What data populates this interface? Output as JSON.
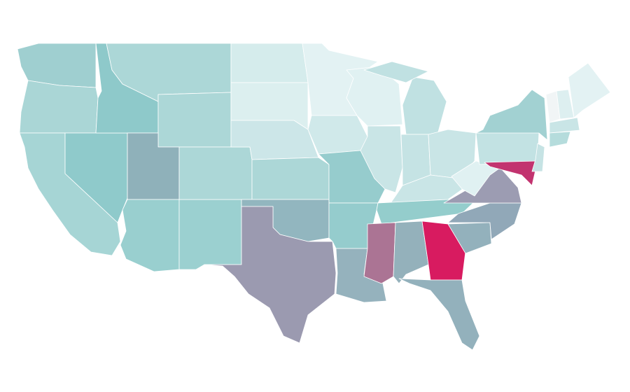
{
  "map": {
    "regions": [
      {
        "fill": "#9fcfd0"
      },
      {
        "fill": "#aad6d6"
      },
      {
        "fill": "#a6d5d5"
      },
      {
        "fill": "#8fcacb"
      },
      {
        "fill": "#8ec9ca"
      },
      {
        "fill": "#acd7d7"
      },
      {
        "fill": "#acd7d7"
      },
      {
        "fill": "#8fb1ba"
      },
      {
        "fill": "#99cfcf"
      },
      {
        "fill": "#9bd0d0"
      },
      {
        "fill": "#acd7d7"
      },
      {
        "fill": "#d5ecec"
      },
      {
        "fill": "#dcefef"
      },
      {
        "fill": "#cce6e8"
      },
      {
        "fill": "#acd7d7"
      },
      {
        "fill": "#92b6bf"
      },
      {
        "fill": "#9b9ab0"
      },
      {
        "fill": "#e3f2f3"
      },
      {
        "fill": "#d0e9ea"
      },
      {
        "fill": "#96cccd"
      },
      {
        "fill": "#95cccd"
      },
      {
        "fill": "#95b2bd"
      },
      {
        "fill": "#e0f1f2"
      },
      {
        "fill": "#c9e5e6"
      },
      {
        "fill": "#c0e1e2"
      },
      {
        "fill": "#c0e1e2"
      },
      {
        "fill": "#c5e3e4"
      },
      {
        "fill": "#c9e5e6"
      },
      {
        "fill": "#c9e5e6"
      },
      {
        "fill": "#94cdcc"
      },
      {
        "fill": "#ab7494"
      },
      {
        "fill": "#94b1bb"
      },
      {
        "fill": "#d81b60"
      },
      {
        "fill": "#93b1bc"
      },
      {
        "fill": "#93b1bc"
      },
      {
        "fill": "#91a8b8"
      },
      {
        "fill": "#9c9cb2"
      },
      {
        "fill": "#e0f1f2"
      },
      {
        "fill": "#c2e2e3"
      },
      {
        "fill": "#a2d1d2"
      },
      {
        "fill": "#c2336f"
      },
      {
        "fill": "#c6e3e4"
      },
      {
        "fill": "#f1f5f6"
      },
      {
        "fill": "#ddeff0"
      },
      {
        "fill": "#e3f2f3"
      },
      {
        "fill": "#c9e5e6"
      },
      {
        "fill": "#b5dcdc"
      }
    ]
  }
}
